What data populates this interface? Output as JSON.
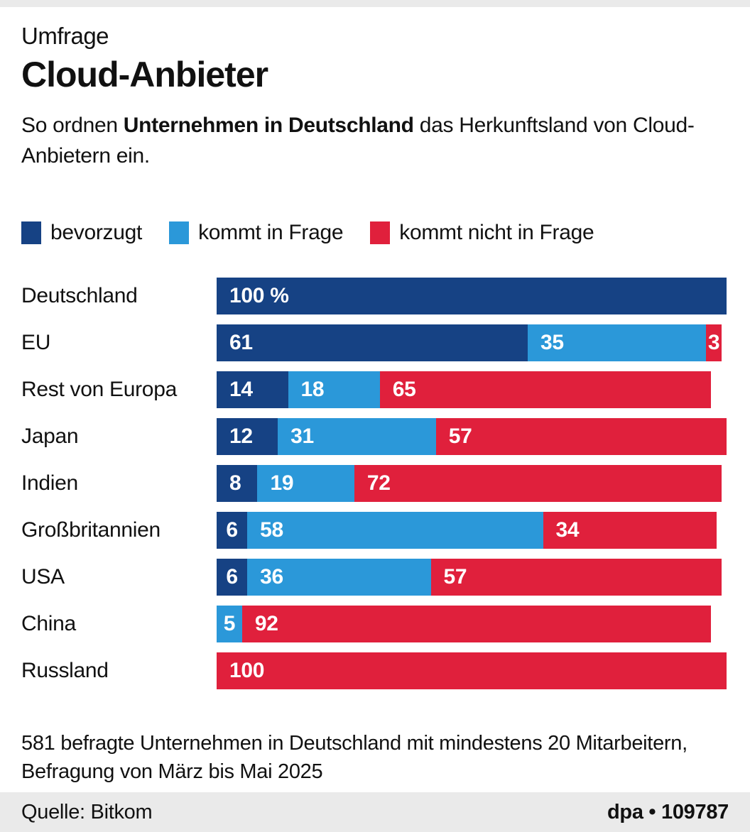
{
  "header": {
    "kicker": "Umfrage",
    "title": "Cloud-Anbieter",
    "subtitle": {
      "pre": "So ordnen ",
      "bold": "Unternehmen in Deutschland",
      "post": " das Herkunftsland von Cloud-Anbietern ein."
    }
  },
  "chart_data": {
    "type": "bar",
    "orientation": "horizontal",
    "stacked": true,
    "unit": "%",
    "x_max": 100,
    "legend_position": "top",
    "grid": false,
    "series": [
      {
        "name": "bevorzugt",
        "color": "#164284"
      },
      {
        "name": "kommt in Frage",
        "color": "#2B98D9"
      },
      {
        "name": "kommt nicht in Frage",
        "color": "#E0203C"
      }
    ],
    "categories": [
      "Deutschland",
      "EU",
      "Rest von Europa",
      "Japan",
      "Indien",
      "Großbritannien",
      "USA",
      "China",
      "Russland"
    ],
    "rows": [
      {
        "category": "Deutschland",
        "segments": [
          {
            "series": 0,
            "value": 100,
            "label": "100 %"
          }
        ]
      },
      {
        "category": "EU",
        "segments": [
          {
            "series": 0,
            "value": 61,
            "label": "61"
          },
          {
            "series": 1,
            "value": 35,
            "label": "35"
          },
          {
            "series": 2,
            "value": 3,
            "label": "3"
          }
        ]
      },
      {
        "category": "Rest von Europa",
        "segments": [
          {
            "series": 0,
            "value": 14,
            "label": "14"
          },
          {
            "series": 1,
            "value": 18,
            "label": "18"
          },
          {
            "series": 2,
            "value": 65,
            "label": "65"
          }
        ]
      },
      {
        "category": "Japan",
        "segments": [
          {
            "series": 0,
            "value": 12,
            "label": "12"
          },
          {
            "series": 1,
            "value": 31,
            "label": "31"
          },
          {
            "series": 2,
            "value": 57,
            "label": "57"
          }
        ]
      },
      {
        "category": "Indien",
        "segments": [
          {
            "series": 0,
            "value": 8,
            "label": "8"
          },
          {
            "series": 1,
            "value": 19,
            "label": "19"
          },
          {
            "series": 2,
            "value": 72,
            "label": "72"
          }
        ]
      },
      {
        "category": "Großbritannien",
        "segments": [
          {
            "series": 0,
            "value": 6,
            "label": "6"
          },
          {
            "series": 1,
            "value": 58,
            "label": "58"
          },
          {
            "series": 2,
            "value": 34,
            "label": "34"
          }
        ]
      },
      {
        "category": "USA",
        "segments": [
          {
            "series": 0,
            "value": 6,
            "label": "6"
          },
          {
            "series": 1,
            "value": 36,
            "label": "36"
          },
          {
            "series": 2,
            "value": 57,
            "label": "57"
          }
        ]
      },
      {
        "category": "China",
        "segments": [
          {
            "series": 1,
            "value": 5,
            "label": "5"
          },
          {
            "series": 2,
            "value": 92,
            "label": "92"
          }
        ]
      },
      {
        "category": "Russland",
        "segments": [
          {
            "series": 2,
            "value": 100,
            "label": "100"
          }
        ]
      }
    ]
  },
  "footnote": {
    "line1": "581 befragte Unternehmen in Deutschland mit mindestens 20 Mitarbeitern,",
    "line2": "Befragung von März bis Mai 2025"
  },
  "footer": {
    "source": "Quelle: Bitkom",
    "credit": "dpa • 109787"
  },
  "colors": {
    "bar_dark_blue": "#164284",
    "bar_light_blue": "#2B98D9",
    "bar_red": "#E0203C",
    "band_gray": "#EAEAEA",
    "background": "#FFFFFF",
    "text": "#111111"
  }
}
